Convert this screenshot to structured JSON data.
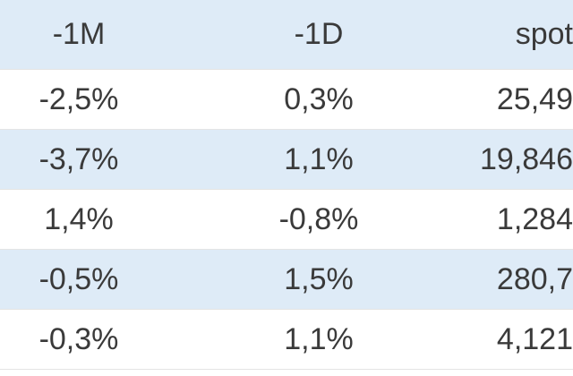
{
  "table": {
    "header": [
      "-1M",
      "-1D",
      "spot"
    ],
    "rows": [
      [
        "-2,5%",
        "0,3%",
        "25,49"
      ],
      [
        "-3,7%",
        "1,1%",
        "19,846"
      ],
      [
        "1,4%",
        "-0,8%",
        "1,284"
      ],
      [
        "-0,5%",
        "1,5%",
        "280,7"
      ],
      [
        "-0,3%",
        "1,1%",
        "4,121"
      ]
    ]
  }
}
